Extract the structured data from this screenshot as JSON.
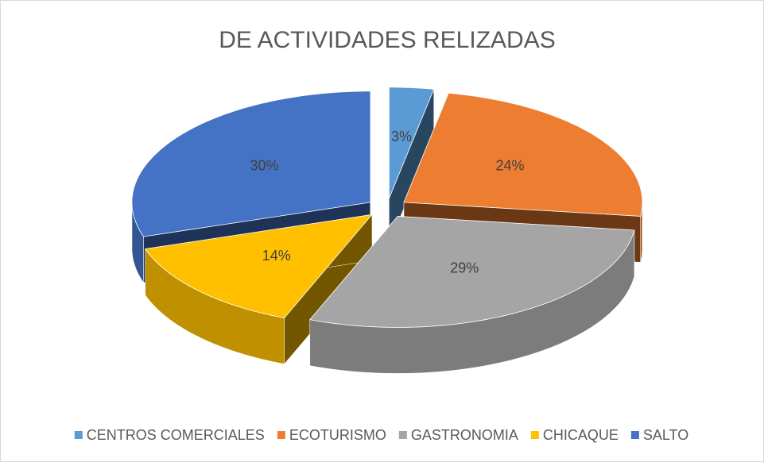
{
  "chart_data": {
    "type": "pie",
    "title": "DE ACTIVIDADES RELIZADAS",
    "categories": [
      "CENTROS COMERCIALES",
      "ECOTURISMO",
      "GASTRONOMIA",
      "CHICAQUE",
      "SALTO"
    ],
    "values": [
      3,
      24,
      29,
      14,
      30
    ],
    "value_labels": [
      "3%",
      "24%",
      "29%",
      "14%",
      "30%"
    ],
    "colors": [
      "#5b9bd5",
      "#ed7d31",
      "#a5a5a5",
      "#ffc000",
      "#4472c4"
    ],
    "legend": "bottom"
  }
}
